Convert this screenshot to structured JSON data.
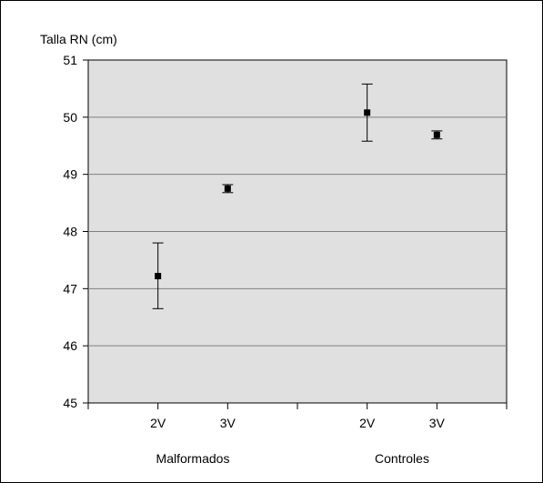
{
  "chart_data": {
    "type": "scatter",
    "title": "",
    "ylabel": "Talla RN (cm)",
    "xlabel": "",
    "ylim": [
      45,
      51
    ],
    "yticks": [
      45,
      46,
      47,
      48,
      49,
      50,
      51
    ],
    "grid": true,
    "plot_background": "#e0e0e0",
    "groups": [
      {
        "label": "Malformados",
        "categories": [
          "2V",
          "3V"
        ]
      },
      {
        "label": "Controles",
        "categories": [
          "2V",
          "3V"
        ]
      }
    ],
    "points": [
      {
        "group": "Malformados",
        "category": "2V",
        "mean": 47.22,
        "lower": 46.65,
        "upper": 47.8
      },
      {
        "group": "Malformados",
        "category": "3V",
        "mean": 48.75,
        "lower": 48.68,
        "upper": 48.82
      },
      {
        "group": "Controles",
        "category": "2V",
        "mean": 50.08,
        "lower": 49.58,
        "upper": 50.58
      },
      {
        "group": "Controles",
        "category": "3V",
        "mean": 49.69,
        "lower": 49.62,
        "upper": 49.76
      }
    ]
  }
}
